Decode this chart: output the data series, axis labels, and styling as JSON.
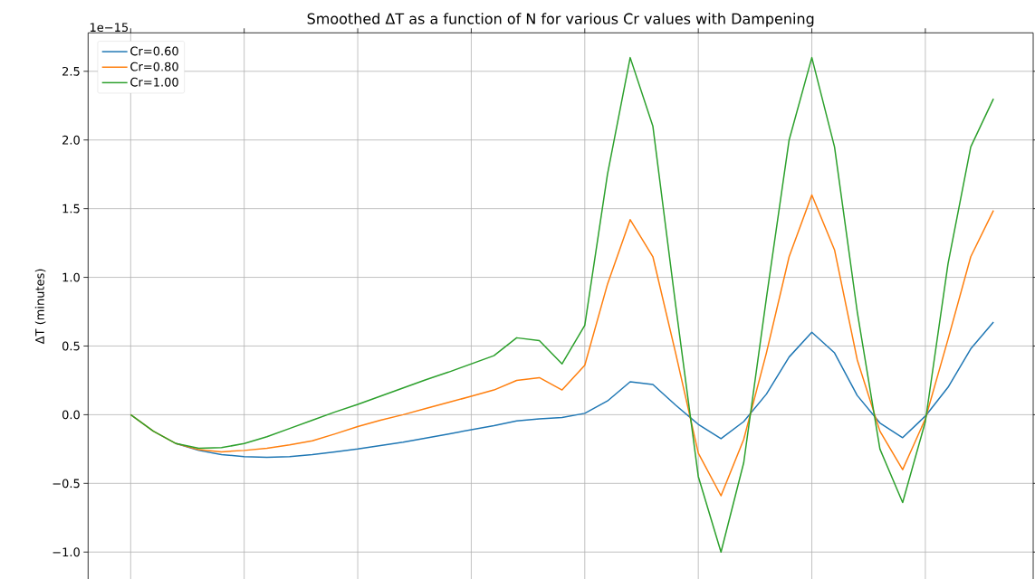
{
  "chart_data": {
    "type": "line",
    "title": "Smoothed ΔT as a function of N for various Cr values with Dampening",
    "ylabel": "ΔT (minutes)",
    "annotations": [
      "1e−15"
    ],
    "categories": [
      null,
      null,
      null,
      null,
      null,
      null,
      null,
      null,
      null,
      null,
      null,
      null,
      null,
      null,
      null,
      null,
      null,
      null,
      null,
      null,
      null,
      null,
      null,
      null,
      null,
      null,
      null,
      null,
      null,
      null,
      null,
      null,
      null,
      null,
      null,
      null,
      null,
      null,
      null
    ],
    "ylim": [
      -1.2,
      2.78
    ],
    "yticks": [
      {
        "value": -1.0,
        "label": "−1.0"
      },
      {
        "value": -0.5,
        "label": "−0.5"
      },
      {
        "value": 0.0,
        "label": "0.0"
      },
      {
        "value": 0.5,
        "label": "0.5"
      },
      {
        "value": 1.0,
        "label": "1.0"
      },
      {
        "value": 1.5,
        "label": "1.5"
      },
      {
        "value": 2.0,
        "label": "2.0"
      },
      {
        "value": 2.5,
        "label": "2.5"
      }
    ],
    "tick_labels": "y",
    "grid": true,
    "legend": "top left",
    "marker": "none",
    "line_style": "solid",
    "series": [
      {
        "name": "Cr=0.60",
        "color": "#1f77b4",
        "values": [
          null,
          null,
          -0.21,
          -0.26,
          -0.29,
          -0.305,
          -0.31,
          -0.305,
          -0.29,
          -0.27,
          -0.25,
          -0.225,
          -0.2,
          -0.17,
          -0.14,
          -0.11,
          -0.08,
          -0.045,
          -0.03,
          -0.02,
          0.01,
          0.1,
          0.24,
          0.22,
          0.07,
          -0.07,
          -0.175,
          -0.05,
          0.15,
          0.42,
          0.6,
          0.45,
          0.14,
          -0.06,
          -0.167,
          -0.01,
          0.2,
          0.48,
          0.675
        ]
      },
      {
        "name": "Cr=0.80",
        "color": "#ff7f0e",
        "values": [
          0,
          -0.12,
          -0.21,
          -0.255,
          -0.27,
          -0.26,
          -0.245,
          -0.22,
          -0.19,
          -0.14,
          -0.086,
          -0.04,
          0.0,
          0.045,
          0.09,
          0.134,
          0.18,
          0.25,
          0.27,
          0.18,
          0.36,
          0.95,
          1.42,
          1.15,
          0.45,
          -0.28,
          -0.59,
          -0.18,
          0.45,
          1.15,
          1.6,
          1.2,
          0.4,
          -0.12,
          -0.4,
          -0.03,
          0.55,
          1.15,
          1.487
        ]
      },
      {
        "name": "Cr=1.00",
        "color": "#2ca02c",
        "values": [
          0,
          -0.12,
          -0.21,
          -0.245,
          -0.24,
          -0.21,
          -0.16,
          -0.1,
          -0.04,
          0.02,
          0.075,
          0.135,
          0.195,
          0.255,
          0.31,
          0.37,
          0.43,
          0.56,
          0.54,
          0.37,
          0.65,
          1.75,
          2.6,
          2.1,
          0.8,
          -0.45,
          -1.0,
          -0.35,
          0.85,
          2.0,
          2.6,
          1.95,
          0.75,
          -0.25,
          -0.64,
          -0.05,
          1.1,
          1.95,
          2.3
        ]
      }
    ]
  }
}
